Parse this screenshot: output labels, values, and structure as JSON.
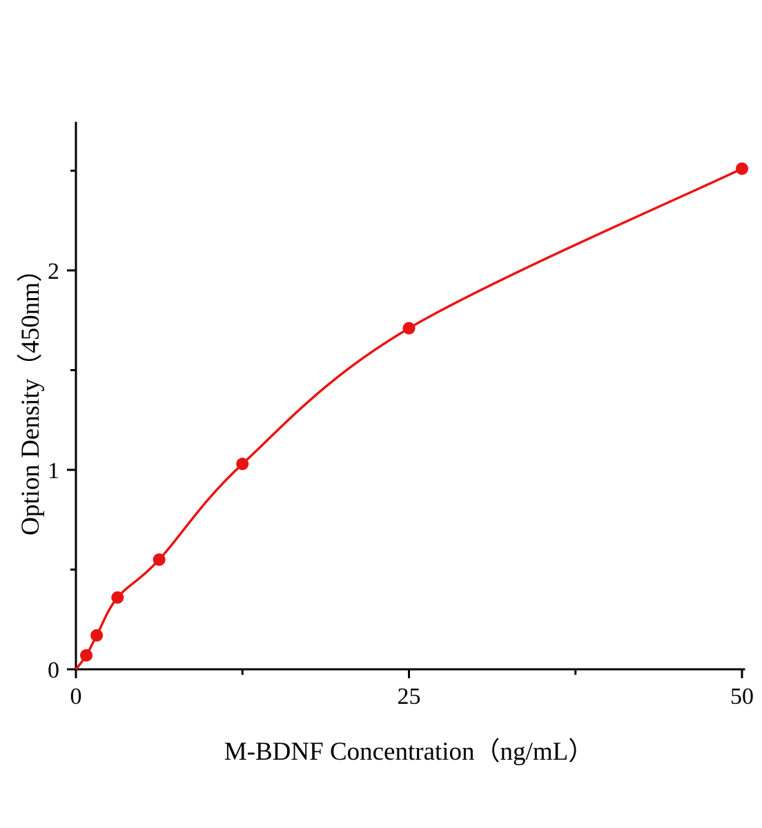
{
  "figure": {
    "background": "#ffffff"
  },
  "chart_data": {
    "type": "scatter",
    "subtype": "standard-curve-with-fit-line",
    "title": "",
    "xlabel": "M-BDNF Concentration（ng/mL）",
    "ylabel": "Option Density（450nm）",
    "x": [
      0.78,
      1.56,
      3.125,
      6.25,
      12.5,
      25,
      50
    ],
    "y": [
      0.07,
      0.17,
      0.36,
      0.55,
      1.03,
      1.71,
      2.51
    ],
    "curve_anchor": [
      0,
      0
    ],
    "xlim": [
      0,
      50
    ],
    "ylim": [
      0,
      2.74
    ],
    "xticks": [
      0,
      25,
      50
    ],
    "yticks": [
      0,
      1,
      2
    ],
    "xticks_minor": [
      12.5,
      37.5
    ],
    "yticks_minor": [
      0.5,
      1.5,
      2.5
    ],
    "grid": false,
    "legend": "none",
    "line_color": "#e81414",
    "marker_color": "#e81414",
    "axis_color": "#000000",
    "marker_size": 9
  }
}
